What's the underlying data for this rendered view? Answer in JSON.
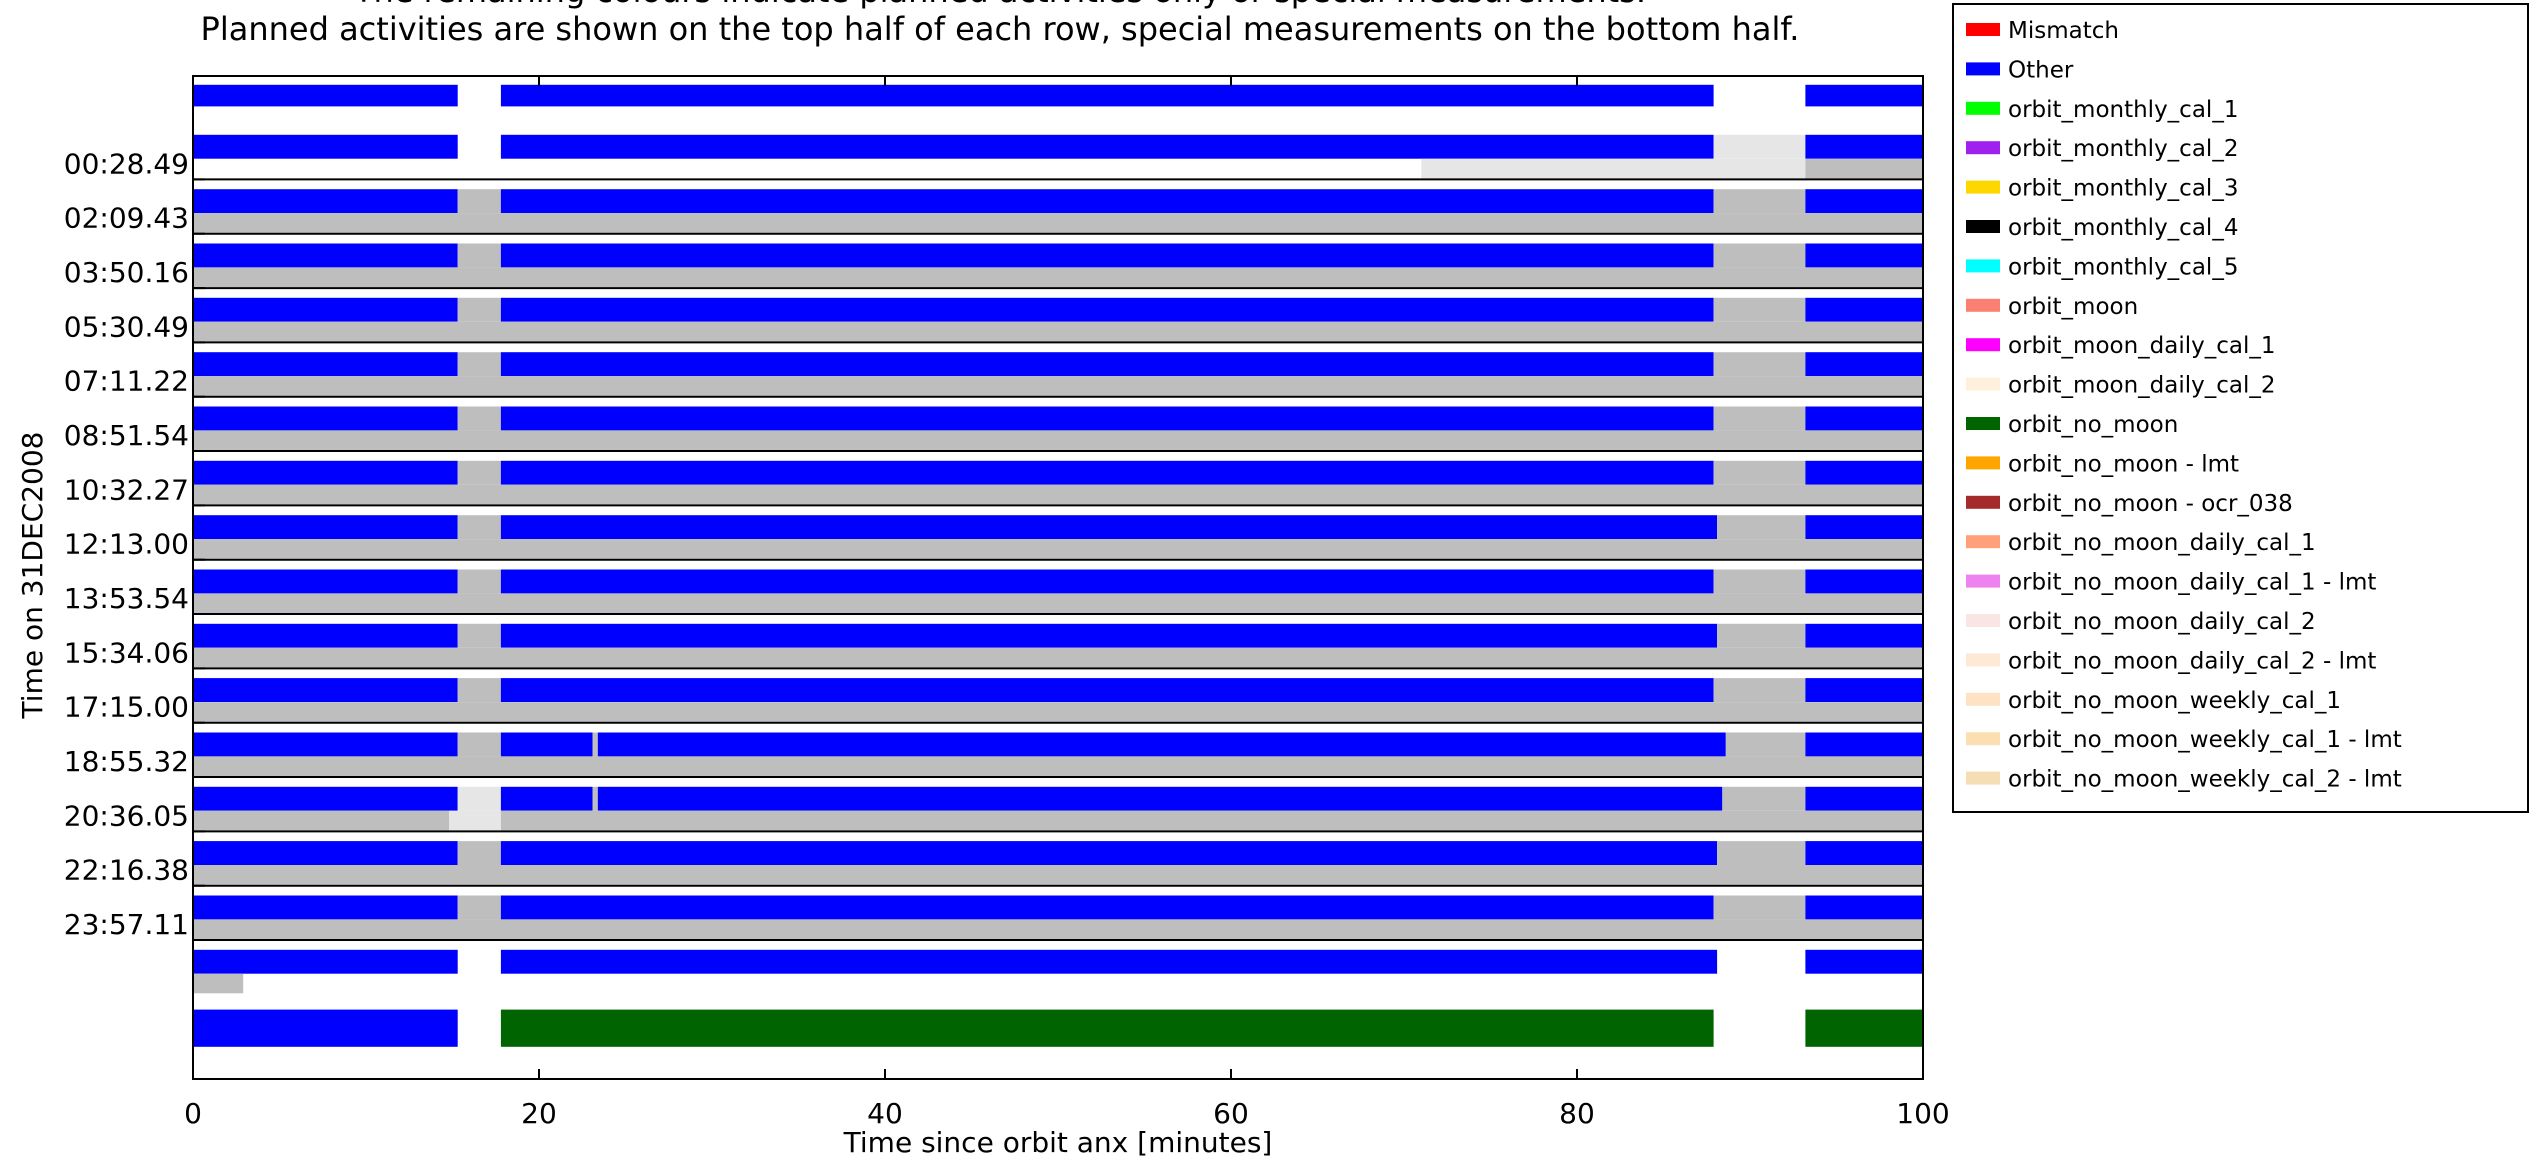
{
  "chart_data": {
    "type": "timeline",
    "title_lines": [
      "The remaining colours indicate planned activities only or special measurements.",
      "Planned activities are shown on the top half of each row, special measurements on the bottom half."
    ],
    "xlabel": "Time since orbit anx [minutes]",
    "ylabel": "Time on 31DEC2008",
    "xlim": [
      0,
      100
    ],
    "x_ticks": [
      0,
      20,
      40,
      60,
      80,
      100
    ],
    "y_tick_labels": [
      "00:28.49",
      "02:09.43",
      "03:50.16",
      "05:30.49",
      "07:11.22",
      "08:51.54",
      "10:32.27",
      "12:13.00",
      "13:53.54",
      "15:34.06",
      "17:15.00",
      "18:55.32",
      "20:36.05",
      "22:16.38",
      "23:57.11"
    ],
    "colors": {
      "other": "#0000ff",
      "no_data_grey": "#bebebe",
      "light_grey": "#e6e6e6",
      "orbit_no_moon": "#006400",
      "frame": "#000000"
    },
    "rows": [
      {
        "top": [
          [
            "other",
            0,
            15.3
          ],
          [
            "other",
            17.8,
            87.9
          ],
          [
            "other",
            93.2,
            100
          ]
        ],
        "bottom": []
      },
      {
        "top": [
          [
            "other",
            0,
            15.3
          ],
          [
            "other",
            17.8,
            87.9
          ],
          [
            "light_grey",
            87.9,
            93.2
          ],
          [
            "other",
            93.2,
            100
          ]
        ],
        "bottom": [
          [
            "light_grey",
            71,
            93.2
          ],
          [
            "no_data_grey",
            93.2,
            100
          ]
        ]
      },
      {
        "top": [
          [
            "other",
            0,
            15.3
          ],
          [
            "no_data_grey",
            15.3,
            17.8
          ],
          [
            "other",
            17.8,
            87.9
          ],
          [
            "no_data_grey",
            87.9,
            93.2
          ],
          [
            "other",
            93.2,
            100
          ]
        ],
        "bottom": [
          [
            "no_data_grey",
            0,
            100
          ]
        ]
      },
      {
        "top": [
          [
            "other",
            0,
            15.3
          ],
          [
            "no_data_grey",
            15.3,
            17.8
          ],
          [
            "other",
            17.8,
            87.9
          ],
          [
            "no_data_grey",
            87.9,
            93.2
          ],
          [
            "other",
            93.2,
            100
          ]
        ],
        "bottom": [
          [
            "no_data_grey",
            0,
            100
          ]
        ]
      },
      {
        "top": [
          [
            "other",
            0,
            15.3
          ],
          [
            "no_data_grey",
            15.3,
            17.8
          ],
          [
            "other",
            17.8,
            87.9
          ],
          [
            "no_data_grey",
            87.9,
            93.2
          ],
          [
            "other",
            93.2,
            100
          ]
        ],
        "bottom": [
          [
            "no_data_grey",
            0,
            100
          ]
        ]
      },
      {
        "top": [
          [
            "other",
            0,
            15.3
          ],
          [
            "no_data_grey",
            15.3,
            17.8
          ],
          [
            "other",
            17.8,
            87.9
          ],
          [
            "no_data_grey",
            87.9,
            93.2
          ],
          [
            "other",
            93.2,
            100
          ]
        ],
        "bottom": [
          [
            "no_data_grey",
            0,
            100
          ]
        ]
      },
      {
        "top": [
          [
            "other",
            0,
            15.3
          ],
          [
            "no_data_grey",
            15.3,
            17.8
          ],
          [
            "other",
            17.8,
            87.9
          ],
          [
            "no_data_grey",
            87.9,
            93.2
          ],
          [
            "other",
            93.2,
            100
          ]
        ],
        "bottom": [
          [
            "no_data_grey",
            0,
            100
          ]
        ]
      },
      {
        "top": [
          [
            "other",
            0,
            15.3
          ],
          [
            "no_data_grey",
            15.3,
            17.8
          ],
          [
            "other",
            17.8,
            87.9
          ],
          [
            "no_data_grey",
            87.9,
            93.2
          ],
          [
            "other",
            93.2,
            100
          ]
        ],
        "bottom": [
          [
            "no_data_grey",
            0,
            100
          ]
        ]
      },
      {
        "top": [
          [
            "other",
            0,
            15.3
          ],
          [
            "no_data_grey",
            15.3,
            17.8
          ],
          [
            "other",
            17.8,
            88.1
          ],
          [
            "no_data_grey",
            88.1,
            93.2
          ],
          [
            "other",
            93.2,
            100
          ]
        ],
        "bottom": [
          [
            "no_data_grey",
            0,
            100
          ]
        ]
      },
      {
        "top": [
          [
            "other",
            0,
            15.3
          ],
          [
            "no_data_grey",
            15.3,
            17.8
          ],
          [
            "other",
            17.8,
            87.9
          ],
          [
            "no_data_grey",
            87.9,
            93.2
          ],
          [
            "other",
            93.2,
            100
          ]
        ],
        "bottom": [
          [
            "no_data_grey",
            0,
            100
          ]
        ]
      },
      {
        "top": [
          [
            "other",
            0,
            15.3
          ],
          [
            "no_data_grey",
            15.3,
            17.8
          ],
          [
            "other",
            17.8,
            88.1
          ],
          [
            "no_data_grey",
            88.1,
            93.2
          ],
          [
            "other",
            93.2,
            100
          ]
        ],
        "bottom": [
          [
            "no_data_grey",
            0,
            100
          ]
        ]
      },
      {
        "top": [
          [
            "other",
            0,
            15.3
          ],
          [
            "no_data_grey",
            15.3,
            17.8
          ],
          [
            "other",
            17.8,
            87.9
          ],
          [
            "no_data_grey",
            87.9,
            93.2
          ],
          [
            "other",
            93.2,
            100
          ]
        ],
        "bottom": [
          [
            "no_data_grey",
            0,
            100
          ]
        ]
      },
      {
        "top": [
          [
            "other",
            0,
            15.3
          ],
          [
            "no_data_grey",
            15.3,
            17.8
          ],
          [
            "other",
            17.8,
            23.1
          ],
          [
            "no_data_grey",
            23.1,
            23.4
          ],
          [
            "other",
            23.4,
            88.6
          ],
          [
            "no_data_grey",
            88.6,
            93.2
          ],
          [
            "other",
            93.2,
            100
          ]
        ],
        "bottom": [
          [
            "no_data_grey",
            0,
            100
          ]
        ]
      },
      {
        "top": [
          [
            "other",
            0,
            15.3
          ],
          [
            "light_grey",
            15.3,
            17.8
          ],
          [
            "other",
            17.8,
            23.1
          ],
          [
            "no_data_grey",
            23.1,
            23.4
          ],
          [
            "other",
            23.4,
            88.4
          ],
          [
            "no_data_grey",
            88.4,
            93.2
          ],
          [
            "other",
            93.2,
            100
          ]
        ],
        "bottom": [
          [
            "no_data_grey",
            0,
            14.8
          ],
          [
            "light_grey",
            14.8,
            17.8
          ],
          [
            "no_data_grey",
            17.8,
            100
          ]
        ]
      },
      {
        "top": [
          [
            "other",
            0,
            15.3
          ],
          [
            "no_data_grey",
            15.3,
            17.8
          ],
          [
            "other",
            17.8,
            88.1
          ],
          [
            "no_data_grey",
            88.1,
            93.2
          ],
          [
            "other",
            93.2,
            100
          ]
        ],
        "bottom": [
          [
            "no_data_grey",
            0,
            100
          ]
        ]
      },
      {
        "top": [
          [
            "other",
            0,
            15.3
          ],
          [
            "no_data_grey",
            15.3,
            17.8
          ],
          [
            "other",
            17.8,
            87.9
          ],
          [
            "no_data_grey",
            87.9,
            93.2
          ],
          [
            "other",
            93.2,
            100
          ]
        ],
        "bottom": [
          [
            "no_data_grey",
            0,
            100
          ]
        ]
      },
      {
        "top": [
          [
            "other",
            0,
            15.3
          ],
          [
            "other",
            17.8,
            88.1
          ],
          [
            "other",
            93.2,
            100
          ]
        ],
        "bottom": [
          [
            "no_data_grey",
            0,
            2.9
          ]
        ]
      },
      {
        "top": [
          [
            "other",
            0,
            15.3
          ],
          [
            "orbit_no_moon",
            17.8,
            87.9
          ],
          [
            "orbit_no_moon",
            93.2,
            100
          ]
        ],
        "bottom": []
      }
    ],
    "legend": [
      {
        "label": "Mismatch",
        "color": "#ff0000"
      },
      {
        "label": "Other",
        "color": "#0000ff"
      },
      {
        "label": "orbit_monthly_cal_1",
        "color": "#00ff00"
      },
      {
        "label": "orbit_monthly_cal_2",
        "color": "#a020f0"
      },
      {
        "label": "orbit_monthly_cal_3",
        "color": "#ffd700"
      },
      {
        "label": "orbit_monthly_cal_4",
        "color": "#000000"
      },
      {
        "label": "orbit_monthly_cal_5",
        "color": "#00ffff"
      },
      {
        "label": "orbit_moon",
        "color": "#fa8072"
      },
      {
        "label": "orbit_moon_daily_cal_1",
        "color": "#ff00ff"
      },
      {
        "label": "orbit_moon_daily_cal_2",
        "color": "#fff0dc"
      },
      {
        "label": "orbit_no_moon",
        "color": "#006400"
      },
      {
        "label": "orbit_no_moon - lmt",
        "color": "#ffa500"
      },
      {
        "label": "orbit_no_moon - ocr_038",
        "color": "#a52a2a"
      },
      {
        "label": "orbit_no_moon_daily_cal_1",
        "color": "#ffa07a"
      },
      {
        "label": "orbit_no_moon_daily_cal_1 - lmt",
        "color": "#ee82ee"
      },
      {
        "label": "orbit_no_moon_daily_cal_2",
        "color": "#fbe4e4"
      },
      {
        "label": "orbit_no_moon_daily_cal_2 - lmt",
        "color": "#fde9d5"
      },
      {
        "label": "orbit_no_moon_weekly_cal_1",
        "color": "#fde2c4"
      },
      {
        "label": "orbit_no_moon_weekly_cal_1 - lmt",
        "color": "#fbdfb0"
      },
      {
        "label": "orbit_no_moon_weekly_cal_2 - lmt",
        "color": "#f5deb3"
      }
    ]
  }
}
